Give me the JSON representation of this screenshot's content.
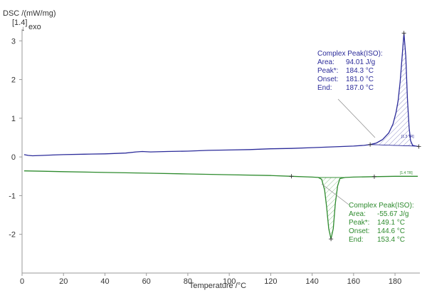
{
  "chart_data": {
    "type": "line",
    "ylabel": "DSC /(mW/mg)",
    "xlabel": "Temperature /°C",
    "exo_label": "exo",
    "exo_ref": "[1.4]",
    "xlim": [
      0,
      192
    ],
    "ylim": [
      -3,
      3.3
    ],
    "x_ticks": [
      0,
      20,
      40,
      60,
      80,
      100,
      120,
      140,
      160,
      180
    ],
    "y_ticks": [
      -2,
      -1,
      0,
      1,
      2,
      3
    ],
    "colors": {
      "series1": "#2c2c9a",
      "series2": "#2e8b2e",
      "axis": "#9a9a9a"
    },
    "series": [
      {
        "tag": "[1.3 TR]",
        "color": "#2c2c9a",
        "points": [
          [
            1,
            0.06
          ],
          [
            3,
            0.04
          ],
          [
            5,
            0.03
          ],
          [
            10,
            0.04
          ],
          [
            15,
            0.05
          ],
          [
            20,
            0.06
          ],
          [
            30,
            0.07
          ],
          [
            40,
            0.08
          ],
          [
            50,
            0.1
          ],
          [
            55,
            0.13
          ],
          [
            58,
            0.14
          ],
          [
            62,
            0.13
          ],
          [
            70,
            0.14
          ],
          [
            80,
            0.15
          ],
          [
            90,
            0.17
          ],
          [
            100,
            0.18
          ],
          [
            110,
            0.19
          ],
          [
            120,
            0.21
          ],
          [
            130,
            0.22
          ],
          [
            140,
            0.24
          ],
          [
            150,
            0.26
          ],
          [
            160,
            0.28
          ],
          [
            165,
            0.3
          ],
          [
            168,
            0.32
          ],
          [
            171,
            0.36
          ],
          [
            174,
            0.45
          ],
          [
            177,
            0.62
          ],
          [
            179,
            0.85
          ],
          [
            180.5,
            1.15
          ],
          [
            181.5,
            1.45
          ],
          [
            182.5,
            1.95
          ],
          [
            183.5,
            2.65
          ],
          [
            184.3,
            3.2
          ],
          [
            185.2,
            2.6
          ],
          [
            186,
            1.5
          ],
          [
            186.8,
            0.75
          ],
          [
            187.5,
            0.42
          ],
          [
            188.5,
            0.3
          ],
          [
            190,
            0.28
          ],
          [
            191.5,
            0.27
          ]
        ],
        "annotation": {
          "title": "Complex Peak(ISO):",
          "rows": [
            {
              "label": "Area:",
              "value": "94.01 J/g"
            },
            {
              "label": "Peak*:",
              "value": "184.3 °C"
            },
            {
              "label": "Onset:",
              "value": "181.0 °C"
            },
            {
              "label": "End:",
              "value": "187.0 °C"
            }
          ]
        }
      },
      {
        "tag": "[1.4 TR]",
        "color": "#2e8b2e",
        "points": [
          [
            1,
            -0.36
          ],
          [
            10,
            -0.37
          ],
          [
            20,
            -0.38
          ],
          [
            40,
            -0.4
          ],
          [
            60,
            -0.42
          ],
          [
            80,
            -0.44
          ],
          [
            100,
            -0.46
          ],
          [
            120,
            -0.48
          ],
          [
            130,
            -0.5
          ],
          [
            140,
            -0.52
          ],
          [
            143,
            -0.53
          ],
          [
            144.6,
            -0.58
          ],
          [
            146,
            -0.85
          ],
          [
            147,
            -1.3
          ],
          [
            148,
            -1.85
          ],
          [
            149.1,
            -2.12
          ],
          [
            150.2,
            -1.85
          ],
          [
            151.2,
            -1.2
          ],
          [
            152.3,
            -0.75
          ],
          [
            153.4,
            -0.56
          ],
          [
            156,
            -0.53
          ],
          [
            160,
            -0.52
          ],
          [
            170,
            -0.51
          ],
          [
            180,
            -0.5
          ],
          [
            186,
            -0.5
          ],
          [
            189,
            -0.5
          ],
          [
            191,
            -0.5
          ]
        ],
        "annotation": {
          "title": "Complex Peak(ISO):",
          "rows": [
            {
              "label": "Area:",
              "value": "-55.67 J/g"
            },
            {
              "label": "Peak*:",
              "value": "149.1 °C"
            },
            {
              "label": "Onset:",
              "value": "144.6 °C"
            },
            {
              "label": "End:",
              "value": "153.4 °C"
            }
          ]
        }
      }
    ]
  }
}
